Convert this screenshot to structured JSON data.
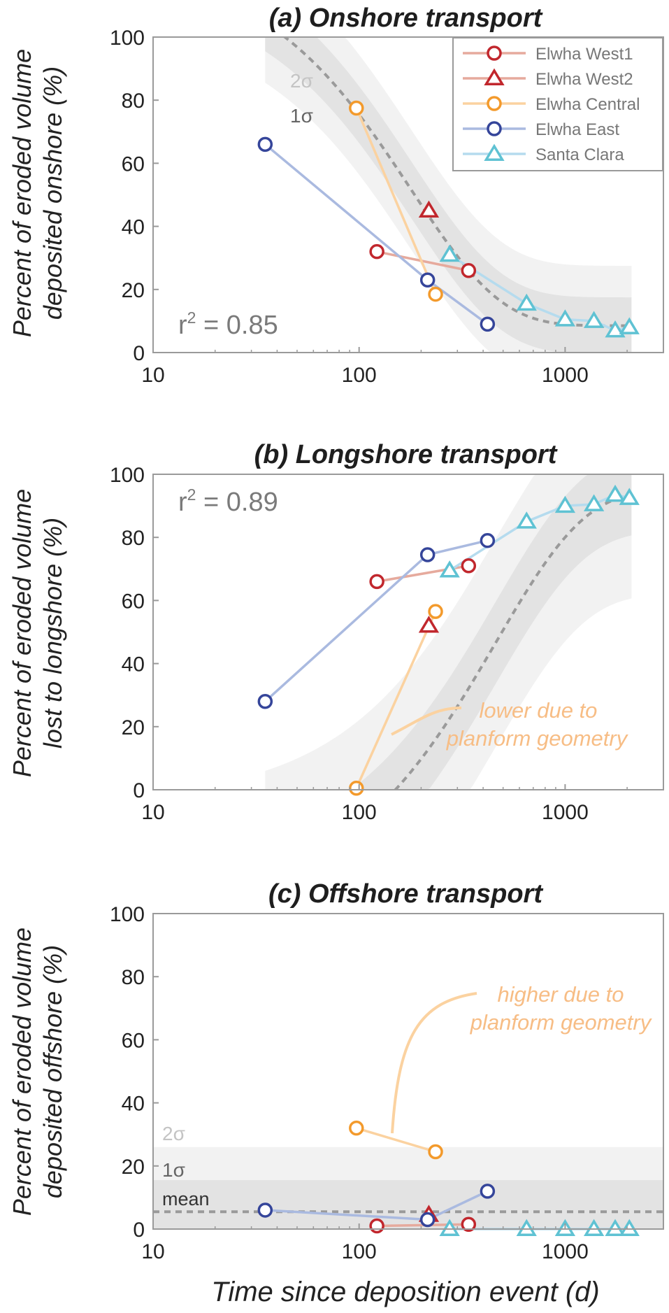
{
  "xlabel": "Time since deposition event (d)",
  "colors": {
    "west1": "#c1272d",
    "west2": "#c1272d",
    "central": "#f39a2c",
    "east": "#35459a",
    "santa": "#5fc2d3",
    "line_west1": "#e6aa9d",
    "line_central": "#fbd2a0",
    "line_east": "#aabae0",
    "line_santa": "#b5dbee",
    "band_1sigma": "#e3e3e3",
    "band_2sigma": "#f2f2f2",
    "fit_line": "#9a9a9a",
    "annotation": "#f7bd85"
  },
  "legend": [
    {
      "key": "west1",
      "label": "Elwha West1",
      "marker": "circle"
    },
    {
      "key": "west2",
      "label": "Elwha West2",
      "marker": "triangle"
    },
    {
      "key": "central",
      "label": "Elwha Central",
      "marker": "circle"
    },
    {
      "key": "east",
      "label": "Elwha East",
      "marker": "circle"
    },
    {
      "key": "santa",
      "label": "Santa Clara",
      "marker": "triangle"
    }
  ],
  "chart_data": [
    {
      "type": "line",
      "title": "(a) Onshore transport",
      "ylabel_line1": "Percent of eroded volume",
      "ylabel_line2": "deposited onshore (%)",
      "xscale": "log",
      "xlim": [
        10,
        3000
      ],
      "ylim": [
        0,
        100
      ],
      "xticks": [
        10,
        100,
        1000
      ],
      "xtick_labels": [
        "10",
        "100",
        "1000"
      ],
      "yticks": [
        0,
        20,
        40,
        60,
        80,
        100
      ],
      "ytick_labels": [
        "0",
        "20",
        "40",
        "60",
        "80",
        "100"
      ],
      "r2_prefix": "r",
      "r2_sup": "2",
      "r2_value": " = 0.85",
      "r2_placement": "bottom-left",
      "sigma2_label": "2σ",
      "sigma1_label": "1σ",
      "legend_placement": "top-right",
      "fit": {
        "kind": "exp",
        "a": 8.5,
        "b": 96,
        "c": 180,
        "x_start": 35,
        "x_end": 2100,
        "sigma1": 9,
        "sigma2": 19
      },
      "series": [
        {
          "key": "west1",
          "name": "Elwha West1",
          "x": [
            122,
            340
          ],
          "y": [
            32,
            26
          ]
        },
        {
          "key": "west2",
          "name": "Elwha West2",
          "x": [
            218
          ],
          "y": [
            45
          ]
        },
        {
          "key": "central",
          "name": "Elwha Central",
          "x": [
            97,
            235
          ],
          "y": [
            77.5,
            18.5
          ]
        },
        {
          "key": "east",
          "name": "Elwha East",
          "x": [
            35,
            215,
            420
          ],
          "y": [
            66,
            23,
            9
          ]
        },
        {
          "key": "santa",
          "name": "Santa Clara",
          "x": [
            275,
            650,
            1000,
            1380,
            1750,
            2050
          ],
          "y": [
            31,
            15.5,
            10.5,
            10,
            7,
            8
          ]
        }
      ]
    },
    {
      "type": "line",
      "title": "(b) Longshore transport",
      "ylabel_line1": "Percent of eroded volume",
      "ylabel_line2": "lost to longshore (%)",
      "xscale": "log",
      "xlim": [
        10,
        3000
      ],
      "ylim": [
        0,
        100
      ],
      "xticks": [
        10,
        100,
        1000
      ],
      "xtick_labels": [
        "10",
        "100",
        "1000"
      ],
      "yticks": [
        0,
        20,
        40,
        60,
        80,
        100
      ],
      "ytick_labels": [
        "0",
        "20",
        "40",
        "60",
        "80",
        "100"
      ],
      "r2_prefix": "r",
      "r2_sup": "2",
      "r2_value": " = 0.89",
      "r2_placement": "top-left",
      "annotation_line1": "lower due to",
      "annotation_line2": "planform geometry",
      "fit": {
        "kind": "expsat",
        "a": 95,
        "b": 122,
        "x0": 35,
        "c": 460,
        "x_start": 35,
        "x_end": 2100,
        "sigma1": 13,
        "sigma2": 33
      },
      "series": [
        {
          "key": "west1",
          "name": "Elwha West1",
          "x": [
            122,
            340
          ],
          "y": [
            66,
            71
          ]
        },
        {
          "key": "west2",
          "name": "Elwha West2",
          "x": [
            218
          ],
          "y": [
            52
          ]
        },
        {
          "key": "central",
          "name": "Elwha Central",
          "x": [
            97,
            235
          ],
          "y": [
            0.5,
            56.5
          ]
        },
        {
          "key": "east",
          "name": "Elwha East",
          "x": [
            35,
            215,
            420
          ],
          "y": [
            28,
            74.5,
            79
          ]
        },
        {
          "key": "santa",
          "name": "Santa Clara",
          "x": [
            275,
            650,
            1000,
            1380,
            1750,
            2050
          ],
          "y": [
            69.5,
            85,
            90,
            90.5,
            93.5,
            92.5
          ]
        }
      ]
    },
    {
      "type": "line",
      "title": "(c) Offshore transport",
      "ylabel_line1": "Percent of eroded volume",
      "ylabel_line2": "deposited offshore (%)",
      "xscale": "log",
      "xlim": [
        10,
        3000
      ],
      "ylim": [
        0,
        100
      ],
      "xticks": [
        10,
        100,
        1000
      ],
      "xtick_labels": [
        "10",
        "100",
        "1000"
      ],
      "yticks": [
        0,
        20,
        40,
        60,
        80,
        100
      ],
      "ytick_labels": [
        "0",
        "20",
        "40",
        "60",
        "80",
        "100"
      ],
      "sigma2_label": "2σ",
      "sigma1_label": "1σ",
      "mean_label": "mean",
      "annotation_line1": "higher due to",
      "annotation_line2": "planform geometry",
      "fit": {
        "kind": "mean",
        "mean": 5.5,
        "sigma1": 10,
        "sigma2": 20.5
      },
      "series": [
        {
          "key": "west1",
          "name": "Elwha West1",
          "x": [
            122,
            340
          ],
          "y": [
            1,
            1.5
          ]
        },
        {
          "key": "west2",
          "name": "Elwha West2",
          "x": [
            218
          ],
          "y": [
            4.5
          ]
        },
        {
          "key": "central",
          "name": "Elwha Central",
          "x": [
            97,
            235
          ],
          "y": [
            32,
            24.5
          ]
        },
        {
          "key": "east",
          "name": "Elwha East",
          "x": [
            35,
            215,
            420
          ],
          "y": [
            6,
            3,
            12
          ]
        },
        {
          "key": "santa",
          "name": "Santa Clara",
          "x": [
            275,
            650,
            1000,
            1380,
            1750,
            2050
          ],
          "y": [
            0,
            0,
            0,
            0,
            0,
            0
          ]
        }
      ]
    }
  ]
}
